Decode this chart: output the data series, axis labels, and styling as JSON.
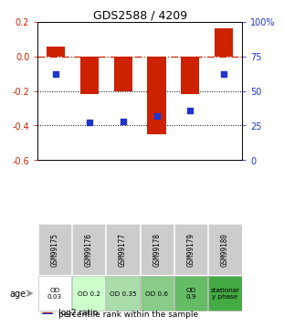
{
  "title": "GDS2588 / 4209",
  "samples": [
    "GSM99175",
    "GSM99176",
    "GSM99177",
    "GSM99178",
    "GSM99179",
    "GSM99180"
  ],
  "log2_ratio": [
    0.055,
    -0.22,
    -0.2,
    -0.45,
    -0.22,
    0.16
  ],
  "percentile_rank": [
    62,
    27,
    28,
    32,
    36,
    62
  ],
  "bar_color": "#cc2200",
  "dot_color": "#2233cc",
  "ylim_left": [
    -0.6,
    0.2
  ],
  "ylim_right": [
    0,
    100
  ],
  "yticks_left": [
    0.2,
    0.0,
    -0.2,
    -0.4,
    -0.6
  ],
  "yticks_right": [
    100,
    75,
    50,
    25,
    0
  ],
  "hline_color": "#cc2200",
  "hline_y": 0.0,
  "dotted_hlines": [
    -0.2,
    -0.4
  ],
  "age_labels": [
    "OD\n0.03",
    "OD 0.2",
    "OD 0.35",
    "OD 0.6",
    "OD\n0.9",
    "stationar\ny phase"
  ],
  "age_bg_colors": [
    "#ffffff",
    "#ccffcc",
    "#aaddaa",
    "#88cc88",
    "#66bb66",
    "#44aa44"
  ],
  "sample_bg_color": "#cccccc",
  "bar_width": 0.55,
  "legend_items": [
    {
      "color": "#cc2200",
      "label": "log2 ratio"
    },
    {
      "color": "#2233cc",
      "label": "percentile rank within the sample"
    }
  ]
}
